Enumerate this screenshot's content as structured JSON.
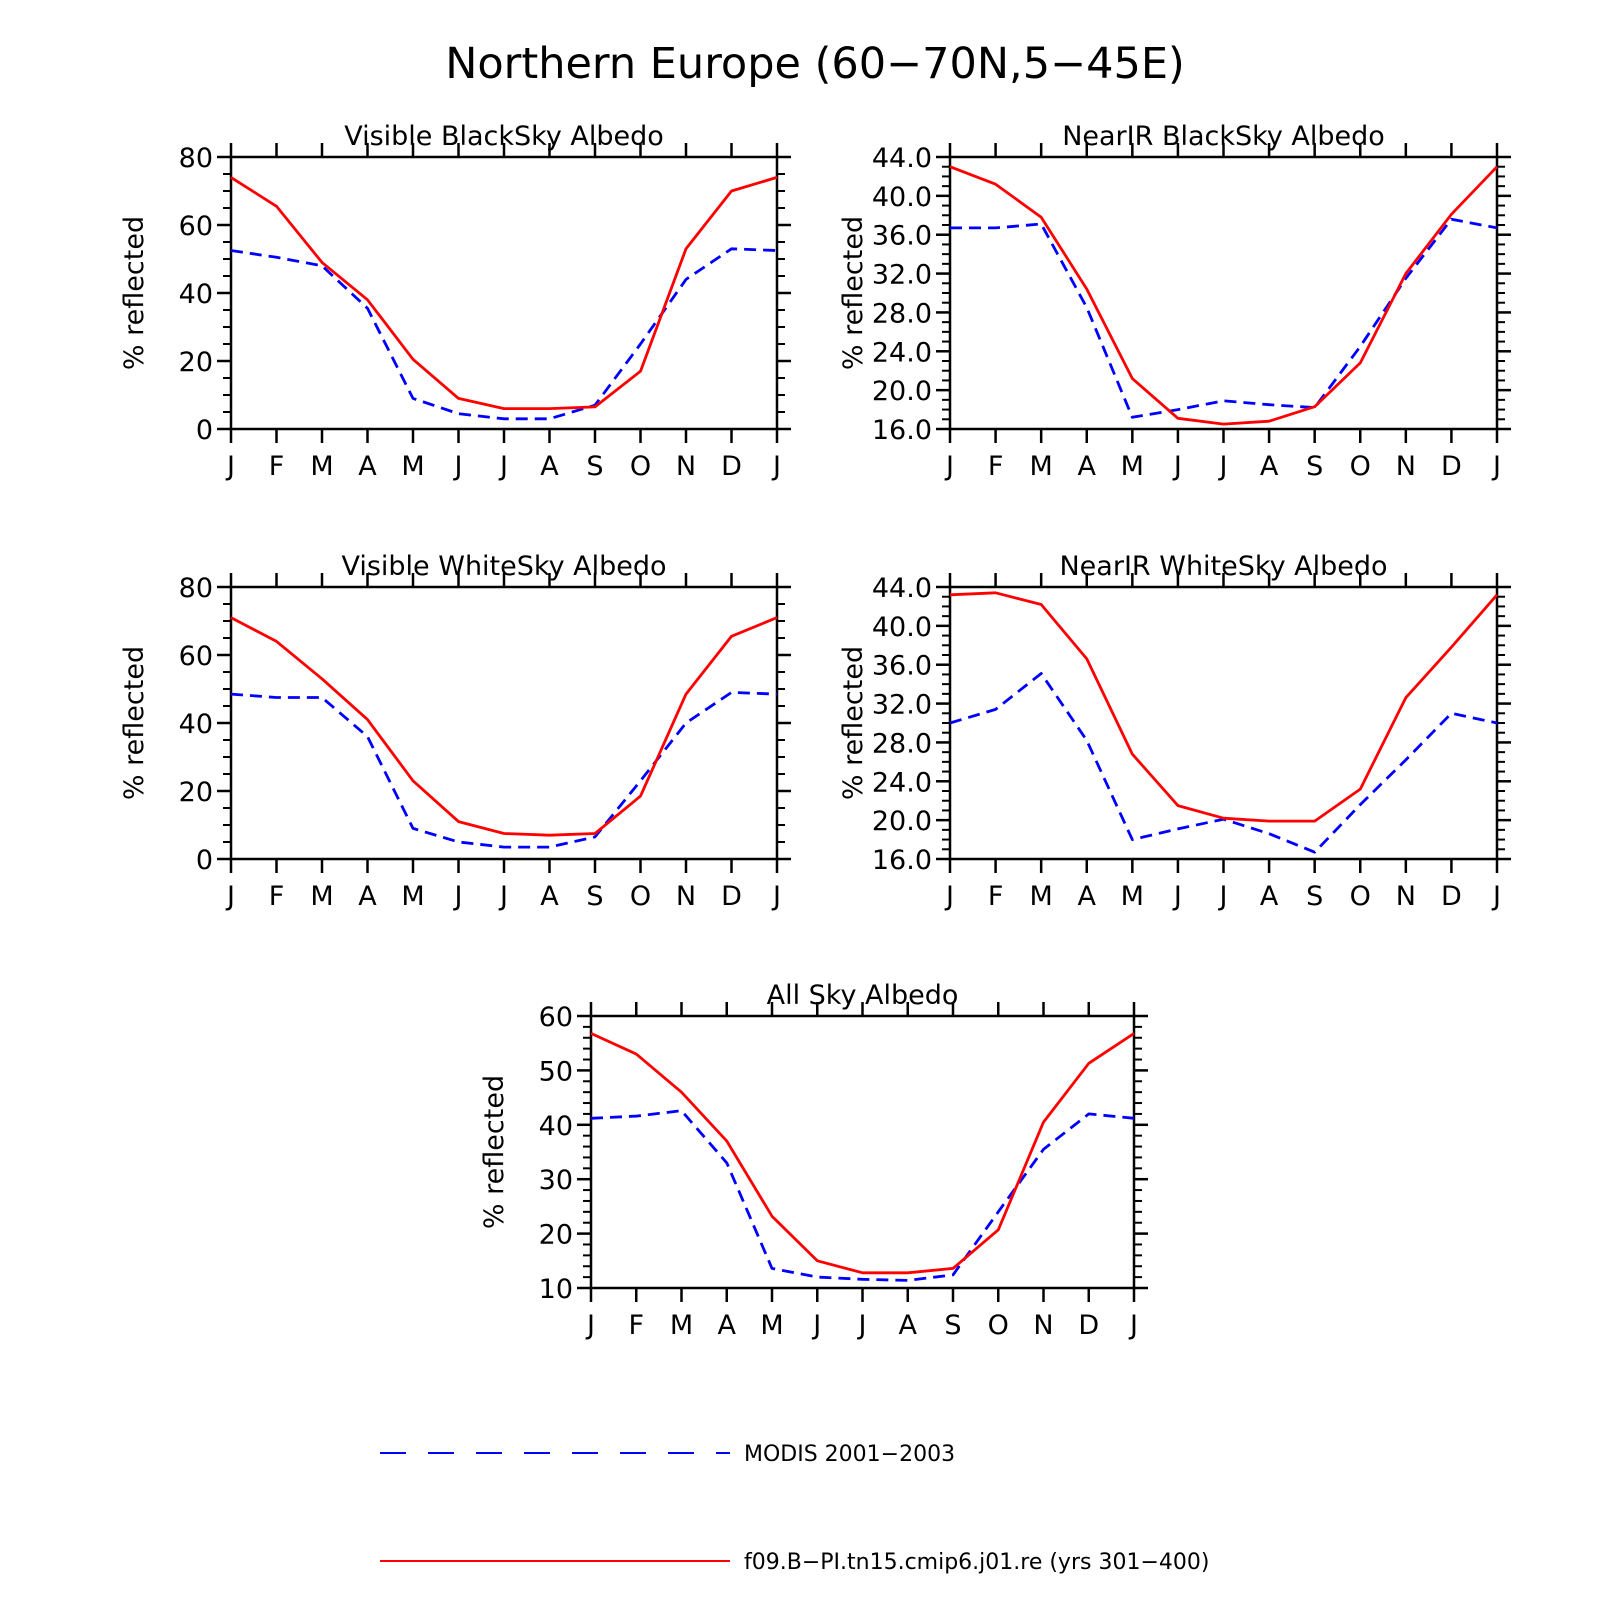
{
  "figure_title": "Northern Europe (60−70N,5−45E)",
  "legend": [
    {
      "label": "MODIS 2001−2003",
      "color": "#0000ff",
      "dash": "dashed"
    },
    {
      "label": "f09.B−PI.tn15.cmip6.j01.re (yrs 301−400)",
      "color": "#ff0000",
      "dash": "solid"
    }
  ],
  "chart_data": [
    {
      "type": "line",
      "title": "Visible BlackSky Albedo",
      "ylabel": "% reflected",
      "x": [
        "J",
        "F",
        "M",
        "A",
        "M",
        "J",
        "J",
        "A",
        "S",
        "O",
        "N",
        "D",
        "J"
      ],
      "ylim": [
        0,
        80
      ],
      "yticks": [
        "0",
        "20",
        "40",
        "60",
        "80"
      ],
      "series": [
        {
          "name": "MODIS 2001−2003",
          "color": "#0000ff",
          "style": "dashed",
          "values": [
            52.5,
            50.5,
            48,
            35.5,
            9,
            4.5,
            3,
            3,
            7,
            25,
            44,
            53,
            52.5
          ]
        },
        {
          "name": "f09.B−PI.tn15.cmip6.j01.re (yrs 301−400)",
          "color": "#ff0000",
          "style": "solid",
          "values": [
            74,
            65.5,
            49,
            38,
            20.5,
            9,
            6,
            6,
            6.5,
            17,
            53,
            70,
            74
          ]
        }
      ]
    },
    {
      "type": "line",
      "title": "NearIR BlackSky Albedo",
      "ylabel": "% reflected",
      "x": [
        "J",
        "F",
        "M",
        "A",
        "M",
        "J",
        "J",
        "A",
        "S",
        "O",
        "N",
        "D",
        "J"
      ],
      "ylim": [
        16,
        44
      ],
      "yticks": [
        "16.0",
        "20.0",
        "24.0",
        "28.0",
        "32.0",
        "36.0",
        "40.0",
        "44.0"
      ],
      "series": [
        {
          "name": "MODIS 2001−2003",
          "color": "#0000ff",
          "style": "dashed",
          "values": [
            36.7,
            36.7,
            37.1,
            28.5,
            17.2,
            18.0,
            18.9,
            18.5,
            18.2,
            24.5,
            31.5,
            37.6,
            36.7
          ]
        },
        {
          "name": "f09.B−PI.tn15.cmip6.j01.re (yrs 301−400)",
          "color": "#ff0000",
          "style": "solid",
          "values": [
            43.0,
            41.2,
            37.8,
            30.4,
            21.2,
            17.1,
            16.5,
            16.8,
            18.3,
            22.8,
            32.0,
            38.1,
            43.0
          ]
        }
      ]
    },
    {
      "type": "line",
      "title": "Visible WhiteSky Albedo",
      "ylabel": "% reflected",
      "x": [
        "J",
        "F",
        "M",
        "A",
        "M",
        "J",
        "J",
        "A",
        "S",
        "O",
        "N",
        "D",
        "J"
      ],
      "ylim": [
        0,
        80
      ],
      "yticks": [
        "0",
        "20",
        "40",
        "60",
        "80"
      ],
      "series": [
        {
          "name": "MODIS 2001−2003",
          "color": "#0000ff",
          "style": "dashed",
          "values": [
            48.5,
            47.5,
            47.5,
            36,
            9,
            5,
            3.5,
            3.5,
            6.5,
            23,
            40,
            49,
            48.5
          ]
        },
        {
          "name": "f09.B−PI.tn15.cmip6.j01.re (yrs 301−400)",
          "color": "#ff0000",
          "style": "solid",
          "values": [
            71,
            64,
            53,
            41,
            23,
            11,
            7.5,
            7,
            7.5,
            18.5,
            48.5,
            65.5,
            71
          ]
        }
      ]
    },
    {
      "type": "line",
      "title": "NearIR WhiteSky Albedo",
      "ylabel": "% reflected",
      "x": [
        "J",
        "F",
        "M",
        "A",
        "M",
        "J",
        "J",
        "A",
        "S",
        "O",
        "N",
        "D",
        "J"
      ],
      "ylim": [
        16,
        44
      ],
      "yticks": [
        "16.0",
        "20.0",
        "24.0",
        "28.0",
        "32.0",
        "36.0",
        "40.0",
        "44.0"
      ],
      "series": [
        {
          "name": "MODIS 2001−2003",
          "color": "#0000ff",
          "style": "dashed",
          "values": [
            30.0,
            31.4,
            35.1,
            28.2,
            18.0,
            19.1,
            20.1,
            18.6,
            16.7,
            21.6,
            26.2,
            31.0,
            30.0
          ]
        },
        {
          "name": "f09.B−PI.tn15.cmip6.j01.re (yrs 301−400)",
          "color": "#ff0000",
          "style": "solid",
          "values": [
            43.2,
            43.4,
            42.2,
            36.6,
            26.8,
            21.5,
            20.2,
            19.9,
            19.9,
            23.2,
            32.6,
            37.8,
            43.2
          ]
        }
      ]
    },
    {
      "type": "line",
      "title": "All Sky Albedo",
      "ylabel": "% reflected",
      "x": [
        "J",
        "F",
        "M",
        "A",
        "M",
        "J",
        "J",
        "A",
        "S",
        "O",
        "N",
        "D",
        "J"
      ],
      "ylim": [
        10,
        60
      ],
      "yticks": [
        "10",
        "20",
        "30",
        "40",
        "50",
        "60"
      ],
      "series": [
        {
          "name": "MODIS 2001−2003",
          "color": "#0000ff",
          "style": "dashed",
          "values": [
            41.2,
            41.6,
            42.6,
            33.0,
            13.6,
            12.0,
            11.6,
            11.4,
            12.4,
            24.0,
            35.5,
            42.0,
            41.2
          ]
        },
        {
          "name": "f09.B−PI.tn15.cmip6.j01.re (yrs 301−400)",
          "color": "#ff0000",
          "style": "solid",
          "values": [
            56.8,
            53.0,
            46.0,
            37.0,
            23.2,
            15.0,
            12.8,
            12.8,
            13.6,
            20.7,
            40.5,
            51.3,
            56.8
          ]
        }
      ]
    }
  ]
}
